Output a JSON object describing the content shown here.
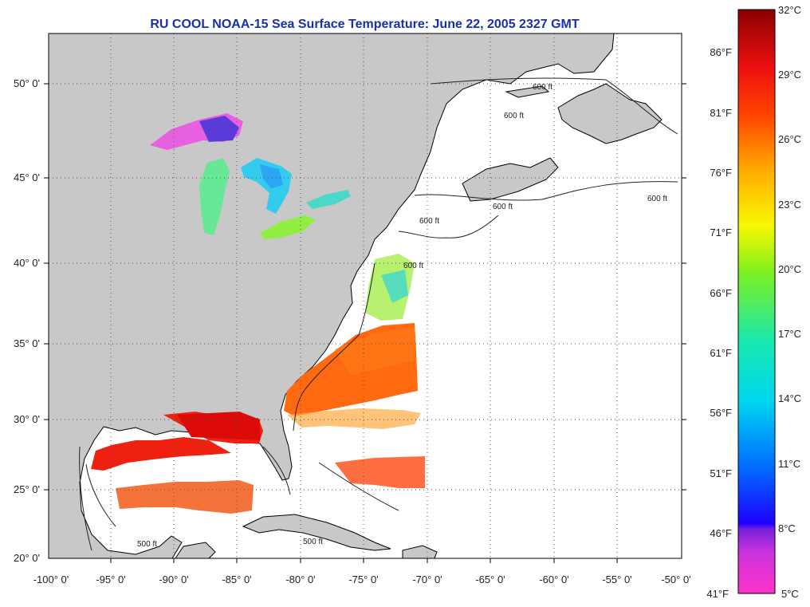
{
  "title": "RU COOL  NOAA-15  Sea Surface Temperature:  June 22, 2005 2327 GMT",
  "lat_labels": [
    "50° 0'",
    "45° 0'",
    "40° 0'",
    "35° 0'",
    "30° 0'",
    "25° 0'",
    "20° 0'"
  ],
  "lon_labels": [
    "-100° 0'",
    "-95° 0'",
    "-90° 0'",
    "-85° 0'",
    "-80° 0'",
    "-75° 0'",
    "-70° 0'",
    "-65° 0'",
    "-60° 0'",
    "-55° 0'",
    "-50° 0'"
  ],
  "colorbar": {
    "f_labels": [
      "86°F",
      "81°F",
      "76°F",
      "71°F",
      "66°F",
      "61°F",
      "56°F",
      "51°F",
      "46°F",
      "41°F"
    ],
    "c_labels": [
      "32°C",
      "29°C",
      "26°C",
      "23°C",
      "20°C",
      "17°C",
      "14°C",
      "11°C",
      "8°C",
      "5°C"
    ]
  },
  "contour_label": "600 ft",
  "contour_label_gulf": "500 ft",
  "colors": {
    "land": "#c8c8c8",
    "ocean": "#ffffff",
    "title": "#1a2fa8"
  }
}
